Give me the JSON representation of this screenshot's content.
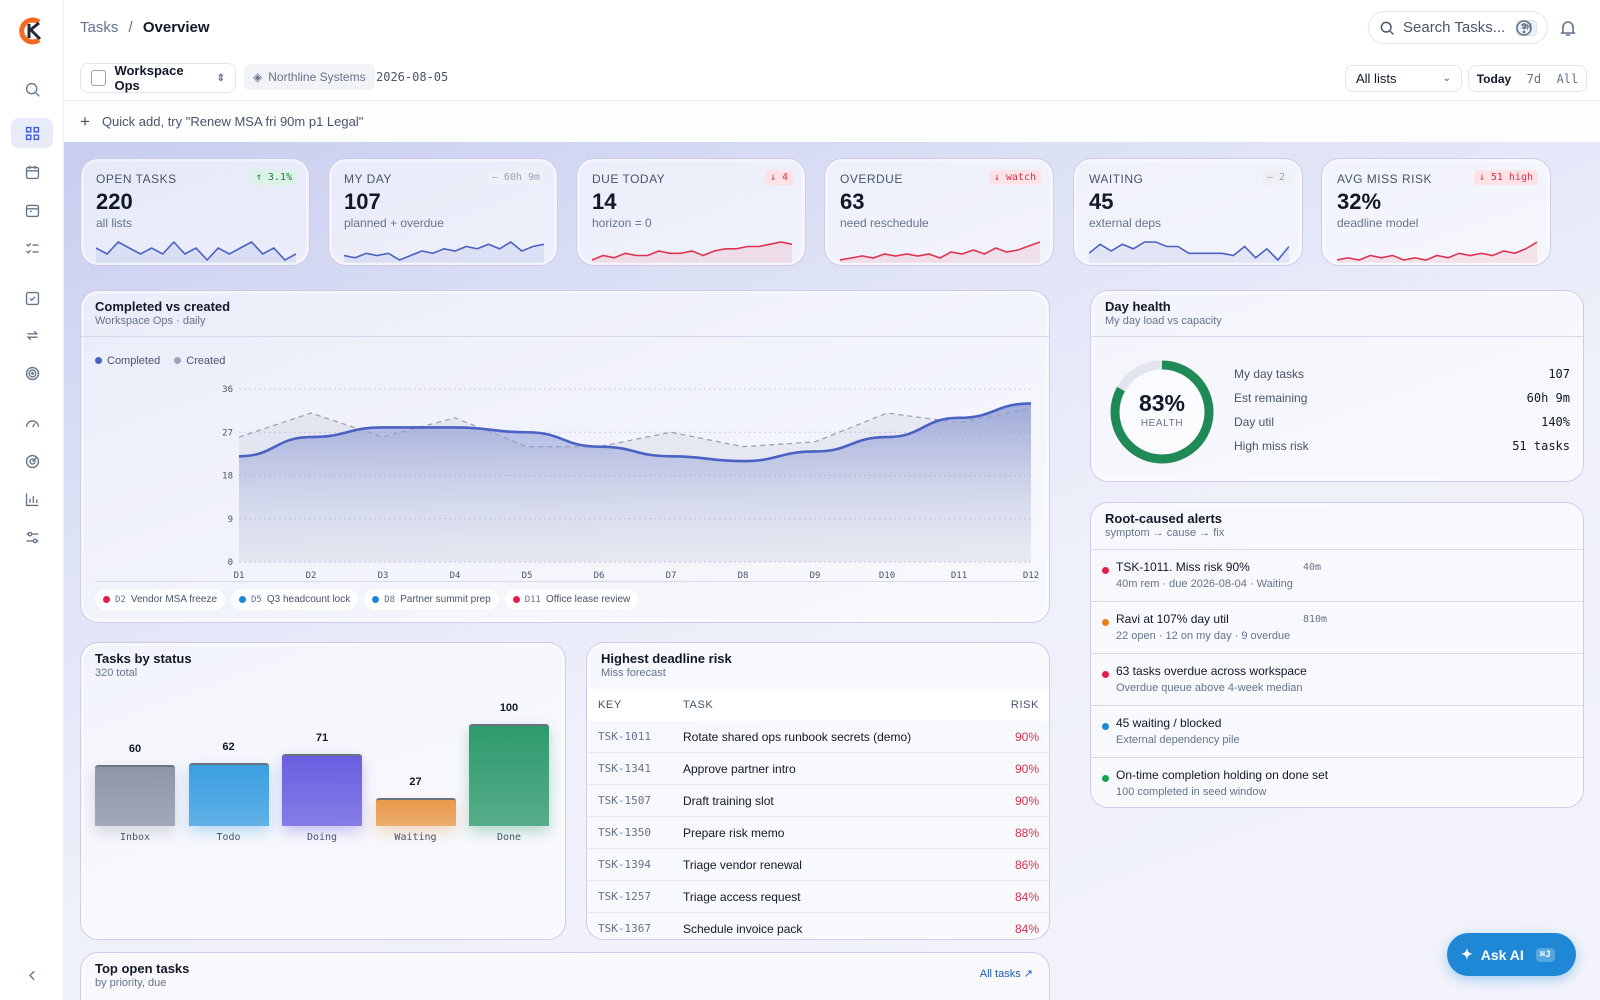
{
  "header": {
    "crumb_root": "Tasks",
    "crumb_sep": "/",
    "crumb_current": "Overview",
    "search_placeholder": "Search Tasks...",
    "search_kbd": "⌘K"
  },
  "sidebar": {
    "icons": [
      "search-icon",
      "dashboard-icon",
      "calendar-icon",
      "calendar-day-icon",
      "checklist-icon",
      "task-check-icon",
      "repeat-icon",
      "target-icon",
      "gauge-icon",
      "radar-icon",
      "bar-chart-icon",
      "sliders-icon"
    ],
    "collapse_icon": "chevron-left-icon"
  },
  "filters": {
    "workspace": "Workspace Ops",
    "org": "Northline Systems",
    "date": "2026-08-05",
    "list_select": "All lists",
    "ranges": [
      "Today",
      "7d",
      "All"
    ],
    "active_range": "Today"
  },
  "quick_add": {
    "placeholder": "Quick add, try \"Renew MSA fri 90m p1 Legal\""
  },
  "kpis": [
    {
      "label": "OPEN TASKS",
      "value": "220",
      "sub": "all lists",
      "tag": "↑ 3.1%",
      "tone": "up",
      "trend": [
        9,
        8,
        10,
        9,
        8,
        9,
        8,
        10,
        8,
        9,
        7,
        9,
        8,
        9,
        10,
        8,
        9,
        7,
        8
      ]
    },
    {
      "label": "MY DAY",
      "value": "107",
      "sub": "planned + overdue",
      "tag": "— 60h 9m",
      "tone": "neu",
      "trend": [
        6,
        5,
        7,
        6,
        7,
        4,
        6,
        8,
        7,
        9,
        8,
        10,
        9,
        11,
        9,
        12,
        8,
        10,
        11
      ]
    },
    {
      "label": "DUE TODAY",
      "value": "14",
      "sub": "horizon = 0",
      "tag": "↓ 4",
      "tone": "dn",
      "trend": [
        4,
        6,
        5,
        7,
        6,
        6,
        8,
        7,
        7,
        8,
        6,
        8,
        9,
        9,
        10,
        10,
        11,
        12,
        11
      ]
    },
    {
      "label": "OVERDUE",
      "value": "63",
      "sub": "need reschedule",
      "tag": "↓ watch",
      "tone": "dn",
      "trend": [
        4,
        5,
        6,
        5,
        7,
        6,
        7,
        6,
        7,
        5,
        8,
        7,
        9,
        7,
        10,
        8,
        9,
        11,
        13
      ]
    },
    {
      "label": "WAITING",
      "value": "45",
      "sub": "external deps",
      "tag": "— 2",
      "tone": "neu",
      "trend": [
        8,
        12,
        9,
        12,
        10,
        13,
        13,
        11,
        11,
        8,
        8,
        8,
        8,
        7,
        11,
        6,
        10,
        5,
        11
      ]
    },
    {
      "label": "AVG MISS RISK",
      "value": "32%",
      "sub": "deadline model",
      "tag": "↓ 51 high",
      "tone": "dn",
      "trend": [
        6,
        7,
        6,
        8,
        7,
        8,
        6,
        7,
        6,
        8,
        7,
        9,
        8,
        9,
        8,
        10,
        9,
        11,
        14
      ]
    }
  ],
  "trend_chart": {
    "title": "Completed vs created",
    "subtitle": "Workspace Ops · daily",
    "legend": [
      {
        "name": "Completed",
        "color": "#4a62c4"
      },
      {
        "name": "Created",
        "color": "#9aa3bb"
      }
    ],
    "annotations": [
      {
        "code": "D2",
        "label": "Vendor MSA freeze",
        "color": "#e11d48"
      },
      {
        "code": "D5",
        "label": "Q3 headcount lock",
        "color": "#1e88d6"
      },
      {
        "code": "D8",
        "label": "Partner summit prep",
        "color": "#1e88d6"
      },
      {
        "code": "D11",
        "label": "Office lease review",
        "color": "#e11d48"
      }
    ]
  },
  "chart_data": [
    {
      "type": "area",
      "x": [
        "D1",
        "D2",
        "D3",
        "D4",
        "D5",
        "D6",
        "D7",
        "D8",
        "D9",
        "D10",
        "D11",
        "D12"
      ],
      "series": [
        {
          "name": "Completed",
          "values": [
            22,
            26,
            28,
            28,
            27,
            24,
            22,
            21,
            23,
            26,
            30,
            33
          ]
        },
        {
          "name": "Created",
          "values": [
            26,
            31,
            26,
            30,
            24,
            24,
            27,
            24,
            25,
            31,
            29,
            32
          ]
        }
      ],
      "yticks": [
        0,
        9,
        18,
        27,
        36
      ],
      "ylim": [
        0,
        36
      ],
      "grid": true,
      "legend": "top-left"
    },
    {
      "type": "bar",
      "categories": [
        "Inbox",
        "Todo",
        "Doing",
        "Waiting",
        "Done"
      ],
      "values": [
        60,
        62,
        71,
        27,
        100
      ],
      "colors": [
        "#8d95a8",
        "#3b9fe0",
        "#6a5ee0",
        "#e89a4a",
        "#2e9a6e"
      ]
    }
  ],
  "day_health": {
    "title": "Day health",
    "subtitle": "My day load vs capacity",
    "percent": 83,
    "percent_label": "83%",
    "ring_label": "HEALTH",
    "rows": [
      {
        "label": "My day tasks",
        "value": "107"
      },
      {
        "label": "Est remaining",
        "value": "60h 9m"
      },
      {
        "label": "Day util",
        "value": "140%"
      },
      {
        "label": "High miss risk",
        "value": "51 tasks"
      }
    ]
  },
  "alerts": {
    "title": "Root-caused alerts",
    "subtitle": "symptom → cause → fix",
    "items": [
      {
        "title": "TSK-1011. Miss risk 90%",
        "meta": "40m",
        "sub": "40m rem · due 2026-08-04 · Waiting",
        "color": "#e11d48"
      },
      {
        "title": "Ravi at 107% day util",
        "meta": "810m",
        "sub": "22 open · 12 on my day · 9 overdue",
        "color": "#e8801e"
      },
      {
        "title": "63 tasks overdue across workspace",
        "meta": "",
        "sub": "Overdue queue above 4-week median",
        "color": "#e11d48"
      },
      {
        "title": "45 waiting / blocked",
        "meta": "",
        "sub": "External dependency pile",
        "color": "#1e88d6"
      },
      {
        "title": "On-time completion holding on done set",
        "meta": "",
        "sub": "100 completed in seed window",
        "color": "#16a34a"
      }
    ]
  },
  "status": {
    "title": "Tasks by status",
    "subtitle": "320 total"
  },
  "risk": {
    "title": "Highest deadline risk",
    "subtitle": "Miss forecast",
    "headers": [
      "KEY",
      "TASK",
      "RISK"
    ],
    "rows": [
      {
        "key": "TSK-1011",
        "task": "Rotate shared ops runbook secrets (demo)",
        "risk": "90%"
      },
      {
        "key": "TSK-1341",
        "task": "Approve partner intro",
        "risk": "90%"
      },
      {
        "key": "TSK-1507",
        "task": "Draft training slot",
        "risk": "90%"
      },
      {
        "key": "TSK-1350",
        "task": "Prepare risk memo",
        "risk": "88%"
      },
      {
        "key": "TSK-1394",
        "task": "Triage vendor renewal",
        "risk": "86%"
      },
      {
        "key": "TSK-1257",
        "task": "Triage access request",
        "risk": "84%"
      },
      {
        "key": "TSK-1367",
        "task": "Schedule invoice pack",
        "risk": "84%"
      }
    ]
  },
  "top_tasks": {
    "title": "Top open tasks",
    "subtitle": "by priority, due",
    "link": "All tasks ↗"
  },
  "ask_ai": {
    "label": "Ask AI",
    "kbd": "⌘J"
  }
}
